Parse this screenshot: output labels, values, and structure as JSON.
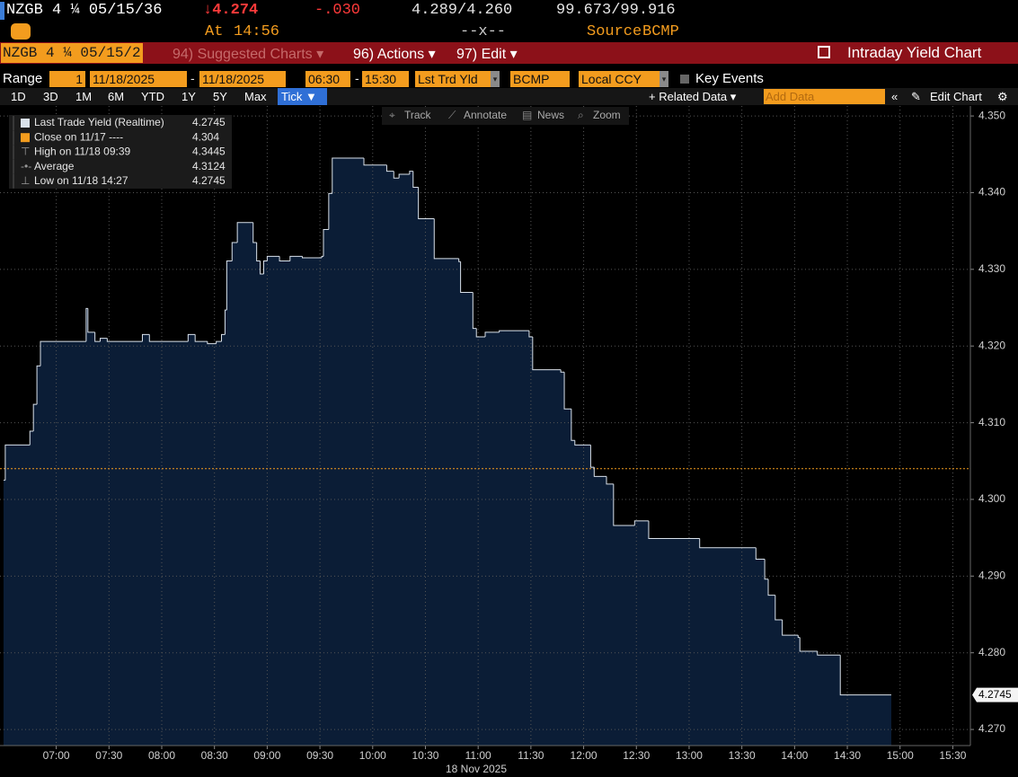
{
  "ui": {
    "ticker": "NZGB 4 ¼ 05/15/36",
    "price": "↓4.274",
    "change": "-.030",
    "bid_ask_yield": "4.289/4.260",
    "bid_ask_price": "99.673/99.916",
    "time_label": "At",
    "time": "14:56",
    "dashes": "--x--",
    "source_label": "Source",
    "source": "BCMP",
    "menu": {
      "security": "NZGB 4 ¼ 05/15/2",
      "suggested": "94) Suggested Charts ▾",
      "actions": "96) Actions ▾",
      "edit": "97) Edit ▾",
      "chart_title": "Intraday Yield Chart"
    },
    "range": {
      "label": "Range",
      "count": "1",
      "start_date": "11/18/2025",
      "sep1": "-",
      "end_date": "11/18/2025",
      "start_time": "06:30",
      "sep2": "-",
      "end_time": "15:30",
      "field": "Lst Trd Yld",
      "source": "BCMP",
      "currency": "Local CCY",
      "key_events": "Key Events"
    },
    "periods": [
      "1D",
      "3D",
      "1M",
      "6M",
      "YTD",
      "1Y",
      "5Y",
      "Max"
    ],
    "tick": "Tick ▼",
    "related": "+ Related Data ▾",
    "add_data": "Add Data",
    "edit_chart": "Edit Chart",
    "tools": [
      "Track",
      "Annotate",
      "News",
      "Zoom"
    ]
  },
  "chart_data": {
    "type": "step",
    "x_label": "18 Nov 2025",
    "x": [
      "06:30",
      "06:31",
      "06:45",
      "06:47",
      "06:49",
      "06:51",
      "07:17",
      "07:18",
      "07:22",
      "07:25",
      "07:29",
      "07:49",
      "07:53",
      "08:15",
      "08:19",
      "08:26",
      "08:31",
      "08:34",
      "08:36",
      "08:37",
      "08:40",
      "08:43",
      "08:52",
      "08:54",
      "08:56",
      "08:58",
      "09:00",
      "09:07",
      "09:13",
      "09:20",
      "09:31",
      "09:32",
      "09:35",
      "09:37",
      "09:55",
      "10:08",
      "10:12",
      "10:15",
      "10:21",
      "10:23",
      "10:26",
      "10:35",
      "10:49",
      "10:50",
      "10:57",
      "10:59",
      "11:04",
      "11:12",
      "11:29",
      "11:31",
      "11:47",
      "11:49",
      "11:53",
      "11:55",
      "12:04",
      "12:06",
      "12:13",
      "12:17",
      "12:29",
      "12:37",
      "13:06",
      "13:38",
      "13:43",
      "13:45",
      "13:49",
      "13:53",
      "14:02",
      "14:03",
      "14:13",
      "14:26",
      "14:55"
    ],
    "series": [
      {
        "name": "Last Trade Yield (Realtime)",
        "color": "#d9e1ea",
        "fill": "#0b1d36",
        "values": [
          4.3025,
          4.3071,
          4.3089,
          4.3124,
          4.3174,
          4.3206,
          4.3249,
          4.3218,
          4.3206,
          4.321,
          4.3206,
          4.3215,
          4.3206,
          4.3215,
          4.3206,
          4.3203,
          4.3206,
          4.3215,
          4.3247,
          4.3311,
          4.3335,
          4.3361,
          4.3335,
          4.3311,
          4.3294,
          4.3311,
          4.3317,
          4.3311,
          4.3317,
          4.3315,
          4.3317,
          4.3352,
          4.3399,
          4.3445,
          4.3436,
          4.3428,
          4.3419,
          4.3424,
          4.3428,
          4.3407,
          4.3366,
          4.3314,
          4.331,
          4.327,
          4.3223,
          4.3212,
          4.3218,
          4.322,
          4.3212,
          4.3169,
          4.3166,
          4.3118,
          4.3077,
          4.3071,
          4.3042,
          4.303,
          4.302,
          4.2966,
          4.2972,
          4.2949,
          4.2937,
          4.2922,
          4.2896,
          4.2875,
          4.2843,
          4.2823,
          4.282,
          4.2802,
          4.2797,
          4.2745,
          4.2745
        ]
      }
    ],
    "stats": [
      {
        "label": "Close on 11/17 ----",
        "value": 4.304,
        "color": "#f39c1e"
      },
      {
        "label": "High on 11/18 09:39",
        "value": 4.3445
      },
      {
        "label": "Average",
        "value": 4.3124
      },
      {
        "label": "Low on 11/18 14:27",
        "value": 4.2745
      }
    ],
    "xlim": [
      "06:28",
      "15:40"
    ],
    "xticks": [
      "07:00",
      "07:30",
      "08:00",
      "08:30",
      "09:00",
      "09:30",
      "10:00",
      "10:30",
      "11:00",
      "11:30",
      "12:00",
      "12:30",
      "13:00",
      "13:30",
      "14:00",
      "14:30",
      "15:00",
      "15:30"
    ],
    "ylim": [
      4.2679,
      4.3513
    ],
    "yticks": [
      {
        "value": 4.27,
        "label": "4.270"
      },
      {
        "value": 4.28,
        "label": "4.280"
      },
      {
        "value": 4.29,
        "label": "4.290"
      },
      {
        "value": 4.3,
        "label": "4.300"
      },
      {
        "value": 4.31,
        "label": "4.310"
      },
      {
        "value": 4.32,
        "label": "4.320"
      },
      {
        "value": 4.33,
        "label": "4.330"
      },
      {
        "value": 4.34,
        "label": "4.340"
      },
      {
        "value": 4.35,
        "label": "4.350"
      }
    ],
    "grid": true
  }
}
